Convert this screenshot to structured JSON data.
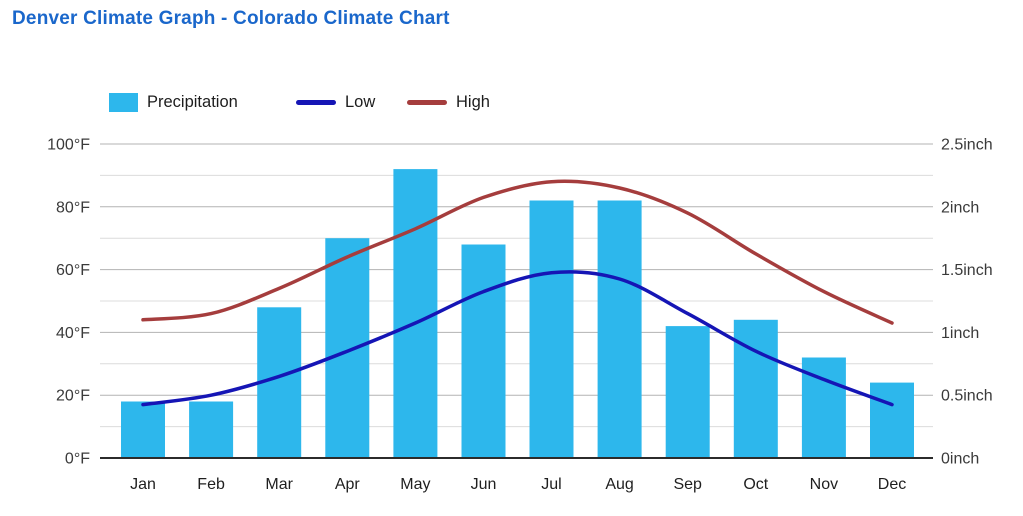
{
  "title": "Denver Climate Graph - Colorado Climate Chart",
  "legend": [
    {
      "label": "Precipitation",
      "type": "bar",
      "color": "#2db7ec"
    },
    {
      "label": "Low",
      "type": "line",
      "color": "#1515b5"
    },
    {
      "label": "High",
      "type": "line",
      "color": "#a53d3d"
    }
  ],
  "chart_data": {
    "type": "bar",
    "subtype": "combo bar + line, dual axis",
    "title": "Denver Climate Graph - Colorado Climate Chart",
    "categories": [
      "Jan",
      "Feb",
      "Mar",
      "Apr",
      "May",
      "Jun",
      "Jul",
      "Aug",
      "Sep",
      "Oct",
      "Nov",
      "Dec"
    ],
    "series": [
      {
        "name": "Precipitation",
        "type": "bar",
        "axis": "right",
        "unit": "inch",
        "color": "#2db7ec",
        "values": [
          0.45,
          0.45,
          1.2,
          1.75,
          2.3,
          1.7,
          2.05,
          2.05,
          1.05,
          1.1,
          0.8,
          0.6
        ]
      },
      {
        "name": "Low",
        "type": "line",
        "axis": "left",
        "unit": "°F",
        "color": "#1515b5",
        "values": [
          17,
          20,
          26,
          34,
          43,
          53,
          59,
          57,
          46,
          34,
          25,
          17
        ]
      },
      {
        "name": "High",
        "type": "line",
        "axis": "left",
        "unit": "°F",
        "color": "#a53d3d",
        "values": [
          44,
          46,
          54,
          64,
          73,
          83,
          88,
          86,
          78,
          65,
          53,
          43
        ]
      }
    ],
    "y_left": {
      "min": 0,
      "max": 100,
      "unit": "°F",
      "ticks": [
        "0°F",
        "20°F",
        "40°F",
        "60°F",
        "80°F",
        "100°F"
      ],
      "gridline_step_f": 10
    },
    "y_right": {
      "min": 0,
      "max": 2.5,
      "unit": "inch",
      "ticks": [
        "0inch",
        "0.5inch",
        "1inch",
        "1.5inch",
        "2inch",
        "2.5inch"
      ]
    },
    "grid": "horizontal gridlines on, every 10°F (minor light, major at labels darker)",
    "legend_position": "top"
  }
}
